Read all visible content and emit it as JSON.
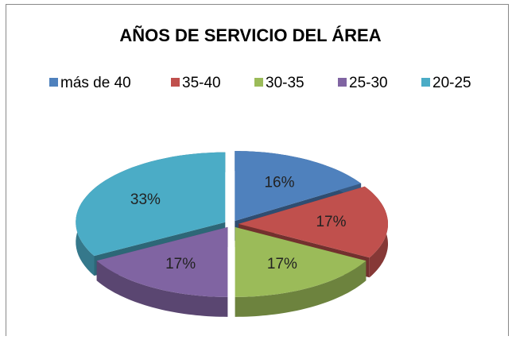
{
  "chart_data": {
    "type": "pie",
    "title": "AÑOS DE SERVICIO DEL ÁREA",
    "categories": [
      "más de 40",
      "35-40",
      "30-35",
      "25-30",
      "20-25"
    ],
    "values": [
      16,
      17,
      17,
      17,
      33
    ],
    "value_labels": [
      "16%",
      "17%",
      "17%",
      "17%",
      "33%"
    ],
    "colors": [
      "#4f81bd",
      "#c0504d",
      "#9bbb59",
      "#8064a2",
      "#4bacc6"
    ],
    "legend": "top"
  }
}
